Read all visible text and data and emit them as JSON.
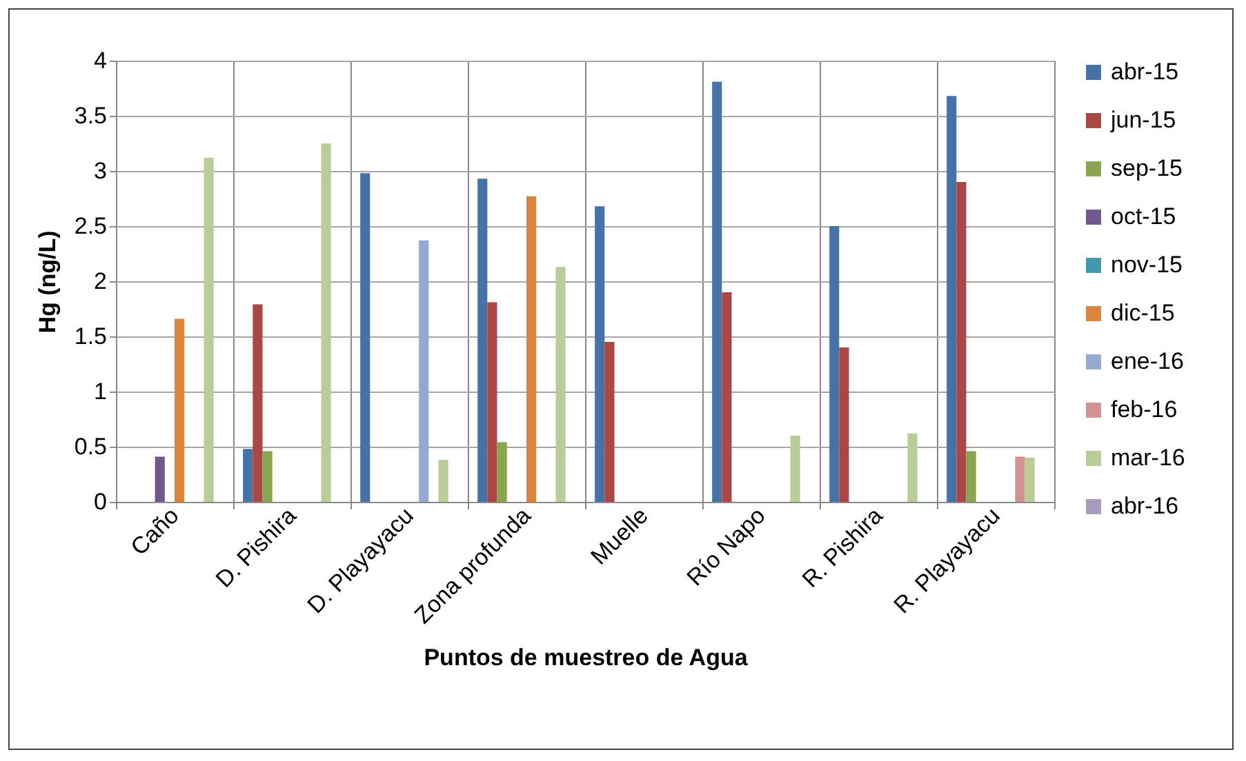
{
  "chart_data": {
    "type": "bar",
    "xlabel": "Puntos de muestreo de Agua",
    "ylabel": "Hg (ng/L)",
    "categories": [
      "Caño",
      "D. Pishira",
      "D. Playayacu",
      "Zona profunda",
      "Muelle",
      "Río Napo",
      "R. Pishira",
      "R. Playayacu"
    ],
    "series": [
      {
        "name": "abr-15",
        "color": "#4572a7",
        "values": [
          null,
          0.48,
          2.98,
          2.93,
          2.68,
          3.81,
          2.5,
          3.68
        ]
      },
      {
        "name": "jun-15",
        "color": "#aa4643",
        "values": [
          null,
          1.79,
          null,
          1.81,
          1.45,
          1.9,
          1.4,
          2.9
        ]
      },
      {
        "name": "sep-15",
        "color": "#89a54e",
        "values": [
          null,
          0.46,
          null,
          0.54,
          null,
          null,
          null,
          0.46
        ]
      },
      {
        "name": "oct-15",
        "color": "#71588f",
        "values": [
          0.41,
          null,
          null,
          null,
          null,
          null,
          null,
          null
        ]
      },
      {
        "name": "nov-15",
        "color": "#4198af",
        "values": [
          null,
          null,
          null,
          null,
          null,
          null,
          null,
          null
        ]
      },
      {
        "name": "dic-15",
        "color": "#db843d",
        "values": [
          1.66,
          null,
          null,
          2.77,
          null,
          null,
          null,
          null
        ]
      },
      {
        "name": "ene-16",
        "color": "#93a9cf",
        "values": [
          null,
          null,
          2.37,
          null,
          null,
          null,
          null,
          null
        ]
      },
      {
        "name": "feb-16",
        "color": "#d19392",
        "values": [
          null,
          null,
          null,
          null,
          null,
          null,
          null,
          0.41
        ]
      },
      {
        "name": "mar-16",
        "color": "#b9cd96",
        "values": [
          3.12,
          3.25,
          0.38,
          2.13,
          null,
          0.6,
          0.62,
          0.4
        ]
      },
      {
        "name": "abr-16",
        "color": "#a99bbd",
        "values": [
          null,
          null,
          null,
          null,
          null,
          null,
          null,
          null
        ]
      }
    ],
    "ylim": [
      0,
      4
    ],
    "yticks": [
      0,
      0.5,
      1,
      1.5,
      2,
      2.5,
      3,
      3.5,
      4
    ],
    "grid": true,
    "legend": "right"
  }
}
